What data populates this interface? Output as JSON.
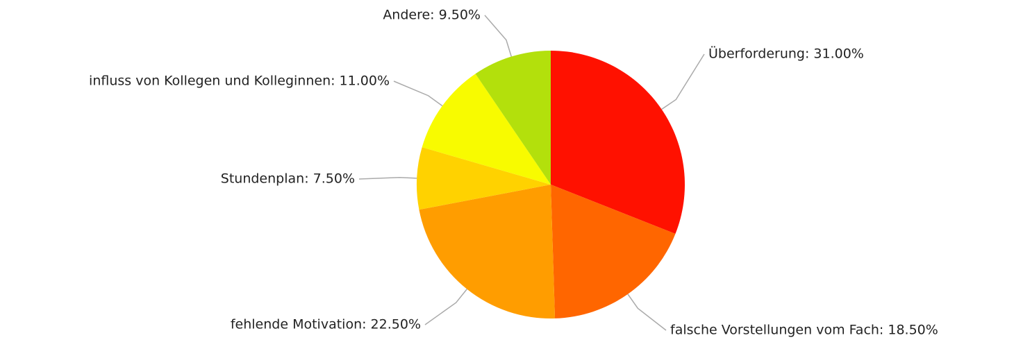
{
  "chart_data": {
    "type": "pie",
    "values": [
      31,
      18.5,
      22.5,
      7.5,
      11,
      9.5
    ],
    "value_labels": [
      "Überforderung: 31.00%",
      "falsche Vorstellungen vom Fach: 18.50%",
      "fehlende Motivation: 22.50%",
      "Stundenplan: 7.50%",
      "influss von Kollegen und Kolleginnen: 11.00%",
      "Andere: 9.50%"
    ],
    "colors": [
      "#ff1100",
      "#ff6600",
      "#ff9d00",
      "#ffd200",
      "#f8fb00",
      "#b3e00c"
    ]
  }
}
